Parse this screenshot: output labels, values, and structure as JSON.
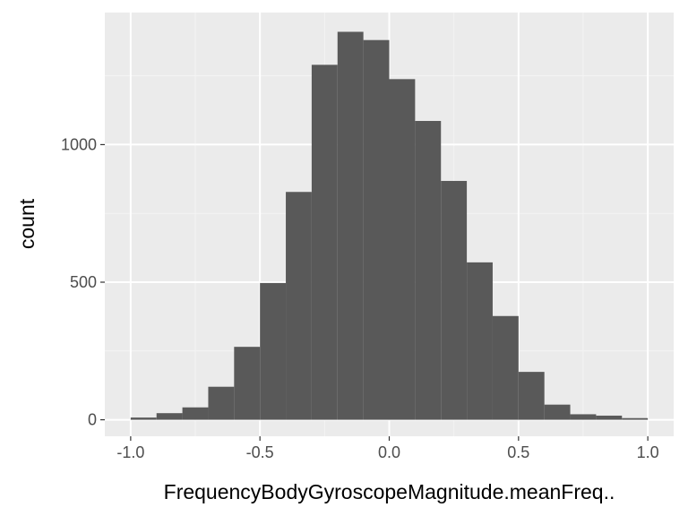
{
  "chart_data": {
    "type": "bar",
    "subtype": "histogram",
    "xlabel": "FrequencyBodyGyroscopeMagnitude.meanFreq..",
    "ylabel": "count",
    "xlim": [
      -1.1,
      1.1
    ],
    "ylim": [
      -60,
      1480
    ],
    "x_ticks": [
      -1.0,
      -0.5,
      0.0,
      0.5,
      1.0
    ],
    "x_tick_labels": [
      "-1.0",
      "-0.5",
      "0.0",
      "0.5",
      "1.0"
    ],
    "y_ticks": [
      0,
      500,
      1000
    ],
    "y_tick_labels": [
      "0",
      "500",
      "1000"
    ],
    "grid": true,
    "bin_edges": [
      -1.0,
      -0.9,
      -0.8,
      -0.7,
      -0.6,
      -0.5,
      -0.4,
      -0.3,
      -0.2,
      -0.1,
      0.0,
      0.1,
      0.2,
      0.3,
      0.4,
      0.5,
      0.6,
      0.7,
      0.8,
      0.9,
      1.0
    ],
    "values": [
      8,
      24,
      45,
      120,
      265,
      497,
      828,
      1290,
      1410,
      1380,
      1238,
      1086,
      868,
      572,
      377,
      174,
      55,
      20,
      15,
      6
    ],
    "colors": {
      "panel": "#ebebeb",
      "grid_major": "#ffffff",
      "grid_minor": "#f4f4f4",
      "bar": "#595959",
      "tick": "#333333"
    }
  }
}
